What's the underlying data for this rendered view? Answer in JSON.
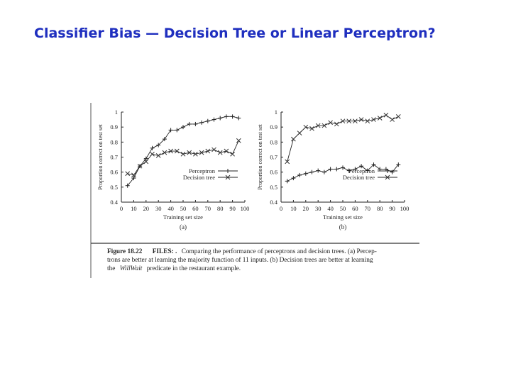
{
  "slide": {
    "title": "Classifier Bias — Decision Tree or Linear Perceptron?"
  },
  "figure": {
    "caption_label": "Figure 18.22",
    "caption_files": "FILES: .",
    "caption_line1": "Comparing the performance of perceptrons and decision trees. (a) Percep-",
    "caption_line2": "trons are better at learning the majority function of 11 inputs. (b) Decision trees are better at learning",
    "caption_line3_pre": "the",
    "caption_line3_italic": "WillWait",
    "caption_line3_post": "predicate in the restaurant example."
  },
  "chart_data": [
    {
      "type": "line",
      "panel_label": "(a)",
      "xlabel": "Training set size",
      "ylabel": "Proportion correct on test set",
      "xlim": [
        0,
        100
      ],
      "ylim": [
        0.4,
        1
      ],
      "xticks": [
        0,
        10,
        20,
        30,
        40,
        50,
        60,
        70,
        80,
        90,
        100
      ],
      "yticks": [
        0.4,
        0.5,
        0.6,
        0.7,
        0.8,
        0.9,
        1
      ],
      "ytick_labels": [
        "0.4",
        "0.5",
        "0.6",
        "0.7",
        "0.8",
        "0.9",
        "1"
      ],
      "legend_position": "bottom-right",
      "x": [
        5,
        10,
        15,
        20,
        25,
        30,
        35,
        40,
        45,
        50,
        55,
        60,
        65,
        70,
        75,
        80,
        85,
        90,
        95
      ],
      "series": [
        {
          "name": "Perceptron",
          "marker": "plus",
          "values": [
            0.51,
            0.56,
            0.64,
            0.69,
            0.76,
            0.78,
            0.82,
            0.88,
            0.88,
            0.9,
            0.92,
            0.92,
            0.93,
            0.94,
            0.95,
            0.96,
            0.97,
            0.97,
            0.96
          ]
        },
        {
          "name": "Decision tree",
          "marker": "x",
          "values": [
            0.59,
            0.58,
            0.64,
            0.67,
            0.72,
            0.71,
            0.73,
            0.74,
            0.74,
            0.72,
            0.73,
            0.72,
            0.73,
            0.74,
            0.75,
            0.73,
            0.74,
            0.72,
            0.81
          ]
        }
      ]
    },
    {
      "type": "line",
      "panel_label": "(b)",
      "xlabel": "Training set size",
      "ylabel": "Proportion correct on test set",
      "xlim": [
        0,
        100
      ],
      "ylim": [
        0.4,
        1
      ],
      "xticks": [
        0,
        10,
        20,
        30,
        40,
        50,
        60,
        70,
        80,
        90,
        100
      ],
      "yticks": [
        0.4,
        0.5,
        0.6,
        0.7,
        0.8,
        0.9,
        1
      ],
      "ytick_labels": [
        "0.4",
        "0.5",
        "0.6",
        "0.7",
        "0.8",
        "0.9",
        "1"
      ],
      "legend_position": "bottom-right",
      "x": [
        5,
        10,
        15,
        20,
        25,
        30,
        35,
        40,
        45,
        50,
        55,
        60,
        65,
        70,
        75,
        80,
        85,
        90,
        95
      ],
      "series": [
        {
          "name": "Perceptron",
          "marker": "plus",
          "values": [
            0.54,
            0.56,
            0.58,
            0.59,
            0.6,
            0.61,
            0.6,
            0.62,
            0.62,
            0.63,
            0.61,
            0.62,
            0.64,
            0.61,
            0.65,
            0.62,
            0.62,
            0.6,
            0.65
          ]
        },
        {
          "name": "Decision tree",
          "marker": "x",
          "values": [
            0.67,
            0.82,
            0.86,
            0.9,
            0.89,
            0.91,
            0.91,
            0.93,
            0.92,
            0.94,
            0.94,
            0.94,
            0.95,
            0.94,
            0.95,
            0.96,
            0.98,
            0.95,
            0.97
          ]
        }
      ]
    }
  ]
}
